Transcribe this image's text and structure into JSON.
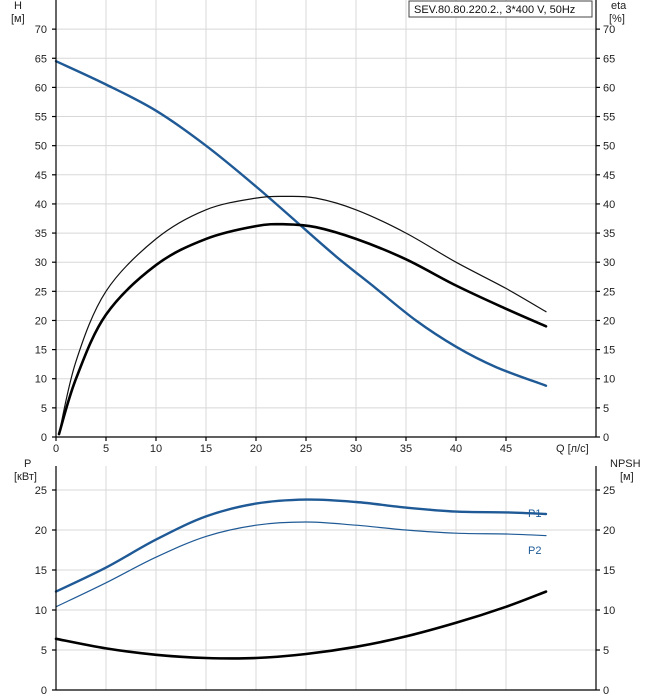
{
  "chart_data": [
    {
      "type": "line",
      "legend_text": "SEV.80.80.220.2., 3*400 V, 50Hz",
      "x_unit_label": "Q [л/с]",
      "y_left_label": [
        "H",
        "[м]"
      ],
      "y_right_label": [
        "eta",
        "[%]"
      ],
      "xlim": [
        0,
        50
      ],
      "ylim": [
        0,
        75
      ],
      "x_ticks": [
        0,
        5,
        10,
        15,
        20,
        25,
        30,
        35,
        40,
        45
      ],
      "y_ticks": [
        0,
        5,
        10,
        15,
        20,
        25,
        30,
        35,
        40,
        45,
        50,
        55,
        60,
        65,
        70
      ],
      "grid": true,
      "series": [
        {
          "key": "H",
          "color": "#1f5a96",
          "width": 2.4,
          "x": [
            0,
            5,
            10,
            15,
            20,
            24,
            28,
            32,
            36,
            40,
            44,
            49
          ],
          "values": [
            64.5,
            60.5,
            56,
            50,
            43,
            37,
            31,
            25.5,
            20,
            15.5,
            12,
            8.8
          ]
        },
        {
          "key": "eta_thin",
          "color": "#111111",
          "width": 1.2,
          "x": [
            0.3,
            2,
            5,
            10,
            15,
            20,
            23,
            26,
            30,
            35,
            40,
            45,
            49
          ],
          "values": [
            0.5,
            13,
            25,
            34,
            39,
            41,
            41.3,
            41,
            39,
            35,
            30,
            25.5,
            21.5
          ]
        },
        {
          "key": "eta_thick",
          "color": "#000000",
          "width": 2.6,
          "x": [
            0.3,
            2,
            5,
            10,
            15,
            20,
            23,
            26,
            30,
            35,
            40,
            45,
            49
          ],
          "values": [
            0.5,
            10,
            21,
            29.5,
            34,
            36.2,
            36.5,
            36,
            34,
            30.5,
            26,
            22,
            19
          ]
        }
      ]
    },
    {
      "type": "line",
      "y_left_label": [
        "P",
        "[кВт]"
      ],
      "y_right_label": [
        "NPSH",
        "[м]"
      ],
      "xlim": [
        0,
        50
      ],
      "ylim": [
        0,
        28
      ],
      "x_ticks": [
        0,
        5,
        10,
        15,
        20,
        25,
        30,
        35,
        40,
        45
      ],
      "y_ticks": [
        0,
        5,
        10,
        15,
        20,
        25
      ],
      "grid": true,
      "series": [
        {
          "name": "P1",
          "key": "P1",
          "color": "#1f5a96",
          "width": 2.4,
          "x": [
            0,
            5,
            10,
            15,
            20,
            25,
            30,
            35,
            40,
            45,
            49
          ],
          "values": [
            12.3,
            15.3,
            18.8,
            21.7,
            23.3,
            23.8,
            23.5,
            22.8,
            22.3,
            22.2,
            22
          ]
        },
        {
          "name": "P2",
          "key": "P2",
          "color": "#1f5a96",
          "width": 1.2,
          "x": [
            0,
            5,
            10,
            15,
            20,
            25,
            30,
            35,
            40,
            45,
            49
          ],
          "values": [
            10.4,
            13.4,
            16.6,
            19.2,
            20.6,
            21,
            20.6,
            20,
            19.6,
            19.5,
            19.3
          ]
        },
        {
          "key": "NPSH",
          "color": "#000000",
          "width": 2.6,
          "x": [
            0,
            5,
            10,
            15,
            20,
            25,
            30,
            35,
            40,
            45,
            49
          ],
          "values": [
            6.4,
            5.2,
            4.4,
            4,
            4,
            4.5,
            5.4,
            6.7,
            8.4,
            10.4,
            12.3
          ]
        }
      ]
    }
  ]
}
